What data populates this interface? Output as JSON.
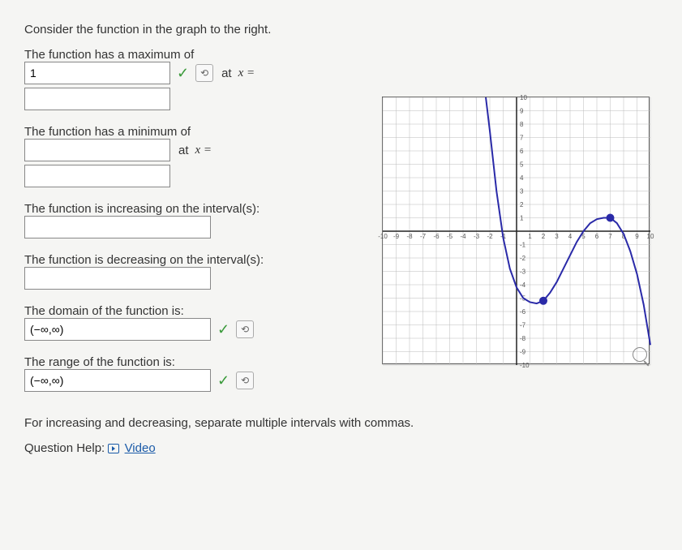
{
  "intro": "Consider the function in the graph to the right.",
  "q1": {
    "label": "The function has a maximum of",
    "value1": "1",
    "at": "at",
    "xeq": "x =",
    "value2": ""
  },
  "q2": {
    "label": "The function has a minimum of",
    "value1": "",
    "at": "at",
    "xeq": "x =",
    "value2": ""
  },
  "q3": {
    "label": "The function is increasing on the interval(s):",
    "value": ""
  },
  "q4": {
    "label": "The function is decreasing on the interval(s):",
    "value": ""
  },
  "q5": {
    "label": "The domain of the function is:",
    "value": "(−∞,∞)"
  },
  "q6": {
    "label": "The range of the function is:",
    "value": "(−∞,∞)"
  },
  "note": "For increasing and decreasing, separate multiple intervals with commas.",
  "help": {
    "label": "Question Help:",
    "link": "Video"
  },
  "chart": {
    "xmin": -10,
    "xmax": 10,
    "ymin": -10,
    "ymax": 10,
    "grid_step": 1,
    "axis_color": "#222222",
    "grid_color": "#bbbbbb",
    "curve_color": "#2a2aa8",
    "point_fill": "#2a2aa8",
    "background": "#ffffff",
    "tick_labels_x": [
      -10,
      -9,
      -8,
      -7,
      -6,
      -5,
      -4,
      -3,
      -2,
      -1,
      1,
      2,
      3,
      4,
      5,
      6,
      7,
      8,
      9,
      10
    ],
    "tick_labels_y": [
      -10,
      -9,
      -8,
      -7,
      -6,
      -5,
      -4,
      -3,
      -2,
      -1,
      1,
      2,
      3,
      4,
      5,
      6,
      7,
      8,
      9,
      10
    ],
    "curve_points": [
      [
        -2.3,
        10
      ],
      [
        -2,
        7.5
      ],
      [
        -1.5,
        3
      ],
      [
        -1,
        -0.5
      ],
      [
        -0.5,
        -2.8
      ],
      [
        0,
        -4.2
      ],
      [
        0.5,
        -5
      ],
      [
        1,
        -5.3
      ],
      [
        1.5,
        -5.4
      ],
      [
        2,
        -5.2
      ],
      [
        2.5,
        -4.6
      ],
      [
        3,
        -3.8
      ],
      [
        3.5,
        -2.8
      ],
      [
        4,
        -1.8
      ],
      [
        4.5,
        -0.8
      ],
      [
        5,
        0
      ],
      [
        5.5,
        0.6
      ],
      [
        6,
        0.9
      ],
      [
        6.5,
        1
      ],
      [
        7,
        1
      ],
      [
        7.5,
        0.6
      ],
      [
        8,
        -0.2
      ],
      [
        8.5,
        -1.5
      ],
      [
        9,
        -3.2
      ],
      [
        9.5,
        -5.5
      ],
      [
        10,
        -8.5
      ]
    ],
    "marked_points": [
      [
        2,
        -5.2
      ],
      [
        7,
        1
      ]
    ],
    "label_fontsize": 8,
    "line_width": 2,
    "point_radius": 5
  }
}
